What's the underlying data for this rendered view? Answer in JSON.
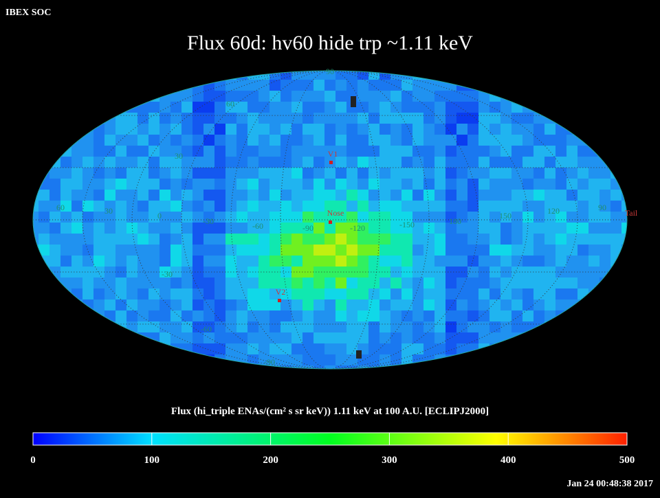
{
  "header": {
    "source": "IBEX SOC",
    "title": "Flux   60d: hv60 hide trp ~1.11 keV"
  },
  "map": {
    "grid_labels": [
      "90",
      "60",
      "30",
      "60",
      "30",
      "0",
      "-30",
      "-60",
      "-90",
      "-120",
      "-150",
      "180",
      "150",
      "120",
      "90",
      "-30",
      "-60",
      "-90"
    ],
    "markers": [
      "V1",
      "Nose",
      "Tail",
      "V2"
    ]
  },
  "colorbar": {
    "title": "Flux (hi_triple ENAs/(cm² s sr keV))  1.11 keV at 100 A.U. [ECLIPJ2000]",
    "lim": [
      0,
      500
    ],
    "ticks": [
      0,
      100,
      200,
      300,
      400,
      500
    ]
  },
  "footer": {
    "timestamp": "Jan 24 00:48:38 2017"
  }
}
